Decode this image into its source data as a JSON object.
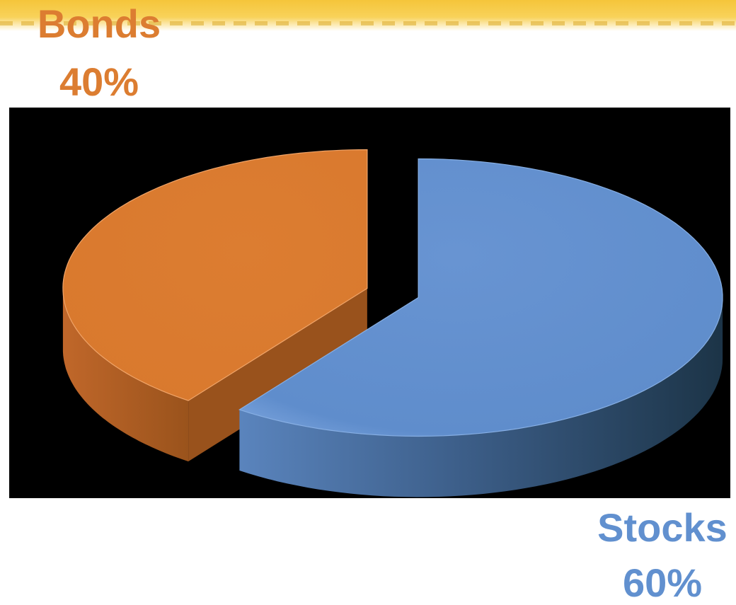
{
  "chart_data": {
    "type": "pie",
    "style": "3d-exploded",
    "categories": [
      "Bonds",
      "Stocks"
    ],
    "values": [
      40,
      60
    ],
    "value_labels": [
      "40%",
      "60%"
    ],
    "colors": [
      "#dc7d31",
      "#6190cf"
    ],
    "side_colors": [
      "#99521c",
      "#2a4c6e"
    ],
    "background": "#000000",
    "legend": "none"
  }
}
